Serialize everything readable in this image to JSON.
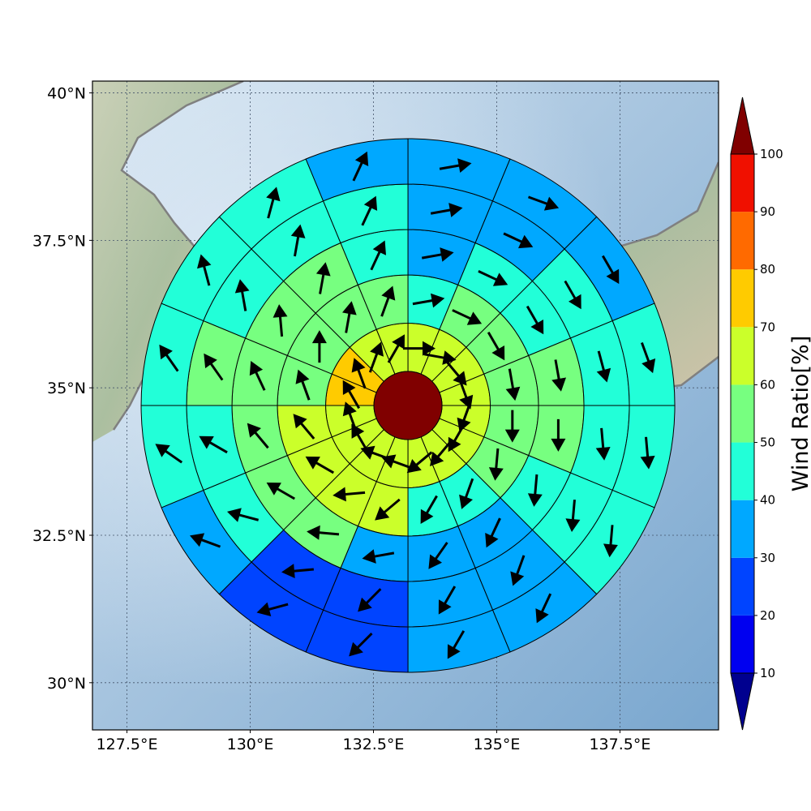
{
  "chart_data": {
    "type": "heatmap",
    "plot_kind": "polar sector wind-ratio map over base map",
    "x_ticks": [
      "127.5°E",
      "130°E",
      "132.5°E",
      "135°E",
      "137.5°E"
    ],
    "y_ticks": [
      "40°N",
      "37.5°N",
      "35°N",
      "32.5°N",
      "30°N"
    ],
    "xlim": [
      126.8,
      139.5
    ],
    "ylim": [
      29.2,
      40.2
    ],
    "center": {
      "lon": 133.2,
      "lat": 34.7
    },
    "ring_outer_radii_deg": [
      0.6,
      1.45,
      2.3,
      3.1,
      3.9,
      4.7
    ],
    "sector_count": 16,
    "sector_order": "clockwise from north, sector 0 spans 0°–22.5°",
    "center_value": 100,
    "rings": [
      {
        "ring": 1,
        "values": [
          66,
          62,
          62,
          62,
          62,
          62,
          62,
          62,
          62,
          62,
          62,
          62,
          72,
          72,
          62,
          62
        ],
        "dirs": [
          90,
          100,
          140,
          160,
          200,
          210,
          220,
          230,
          290,
          290,
          330,
          340,
          330,
          340,
          20,
          30
        ]
      },
      {
        "ring": 2,
        "values": [
          45,
          55,
          55,
          55,
          55,
          55,
          45,
          45,
          62,
          62,
          62,
          62,
          55,
          55,
          55,
          55
        ],
        "dirs": [
          80,
          115,
          150,
          170,
          180,
          185,
          200,
          210,
          230,
          265,
          300,
          320,
          340,
          0,
          10,
          20
        ]
      },
      {
        "ring": 3,
        "values": [
          35,
          45,
          45,
          55,
          55,
          45,
          35,
          35,
          35,
          55,
          55,
          55,
          55,
          55,
          55,
          45
        ],
        "dirs": [
          80,
          115,
          150,
          170,
          180,
          185,
          205,
          215,
          260,
          275,
          300,
          320,
          335,
          355,
          10,
          25
        ]
      },
      {
        "ring": 4,
        "values": [
          35,
          35,
          45,
          45,
          45,
          45,
          35,
          35,
          25,
          25,
          45,
          45,
          55,
          45,
          45,
          45
        ],
        "dirs": [
          80,
          115,
          150,
          165,
          175,
          185,
          200,
          210,
          225,
          265,
          285,
          300,
          325,
          350,
          10,
          25
        ]
      },
      {
        "ring": 5,
        "values": [
          35,
          35,
          35,
          45,
          45,
          45,
          35,
          35,
          25,
          25,
          35,
          45,
          45,
          45,
          45,
          35
        ],
        "dirs": [
          80,
          110,
          150,
          160,
          175,
          185,
          205,
          210,
          225,
          255,
          290,
          305,
          325,
          345,
          15,
          25
        ]
      },
      {
        "ring": 6,
        "values": [
          35,
          35,
          35,
          45,
          45,
          35,
          35,
          25,
          25,
          25,
          35,
          35,
          45,
          45,
          55,
          35
        ],
        "dirs": [
          80,
          105,
          125,
          150,
          165,
          180,
          190,
          205,
          210,
          255,
          290,
          305,
          330,
          345,
          15,
          25
        ]
      }
    ],
    "colorbar": {
      "label": "Wind Ratio[%]",
      "ticks": [
        "10",
        "20",
        "30",
        "40",
        "50",
        "60",
        "70",
        "80",
        "90",
        "100"
      ],
      "bounds": [
        0,
        10,
        20,
        30,
        40,
        50,
        60,
        70,
        80,
        90,
        100
      ],
      "colors": [
        "#00008f",
        "#0000f0",
        "#0044ff",
        "#00a8ff",
        "#22ffd8",
        "#77ff80",
        "#cbff2a",
        "#ffcb00",
        "#ff6a00",
        "#f01000",
        "#800000"
      ],
      "extend": "both"
    },
    "grid": true,
    "map_background": true
  }
}
